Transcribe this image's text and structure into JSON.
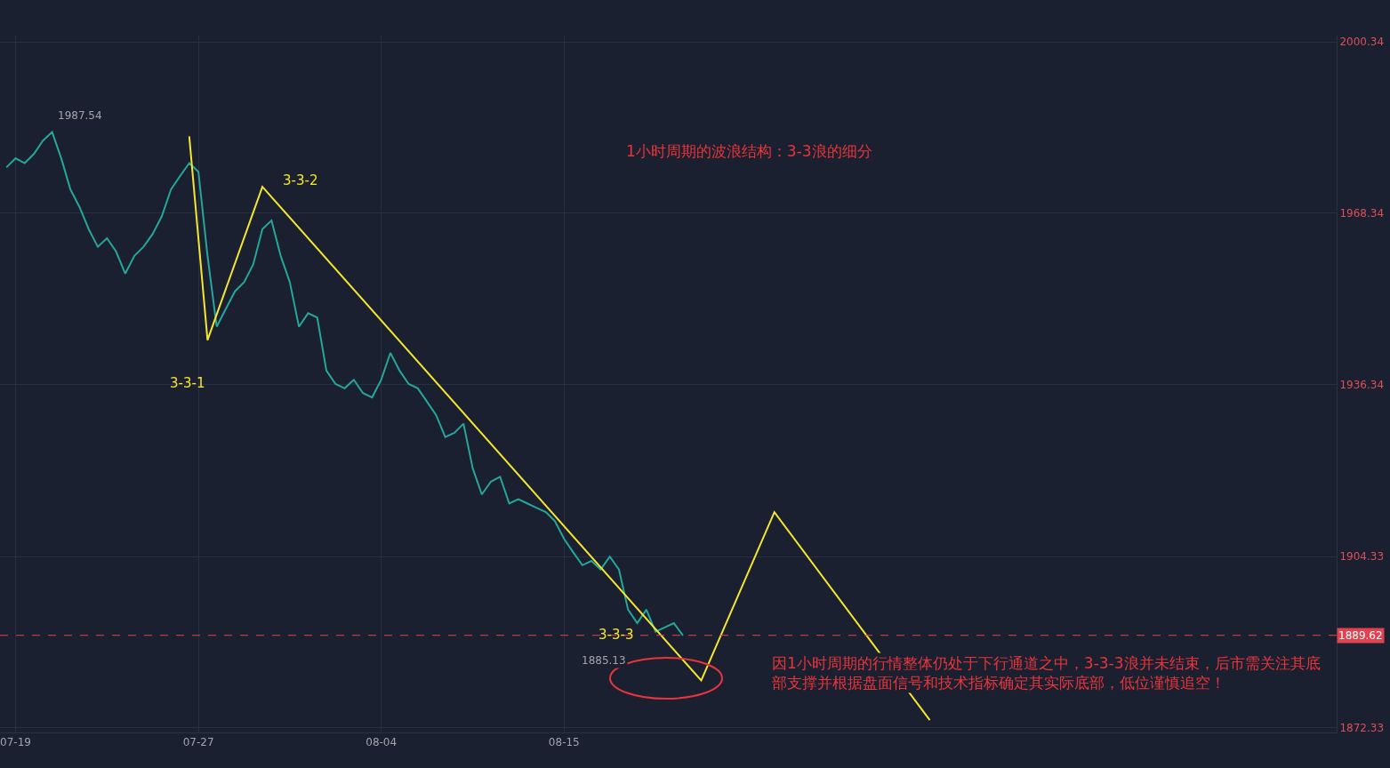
{
  "chart_data": {
    "type": "line",
    "categories": [
      null,
      "07-19",
      null,
      null,
      null,
      null,
      null,
      null,
      null,
      null,
      null,
      null,
      null,
      null,
      null,
      null,
      null,
      null,
      null,
      null,
      null,
      "07-27",
      null,
      null,
      null,
      null,
      null,
      null,
      null,
      null,
      null,
      null,
      null,
      null,
      null,
      null,
      null,
      null,
      null,
      null,
      null,
      "08-04",
      null,
      null,
      null,
      null,
      null,
      null,
      null,
      null,
      null,
      null,
      null,
      null,
      null,
      null,
      null,
      null,
      null,
      null,
      null,
      "08-15",
      null,
      null,
      null,
      null,
      null,
      null,
      null,
      null,
      null,
      null,
      null,
      null,
      null,
      null,
      null,
      null,
      null,
      null,
      null,
      null,
      null,
      null,
      null,
      null,
      null,
      null,
      null,
      null,
      null,
      null,
      null,
      null,
      null,
      null,
      null,
      null,
      null,
      null,
      null,
      null,
      null,
      null,
      null,
      null,
      null,
      null,
      null,
      null,
      null,
      null,
      null,
      null,
      null,
      null,
      null,
      null,
      null,
      null,
      null,
      null,
      null,
      null,
      null,
      null,
      null,
      null,
      null,
      null,
      null,
      null,
      null,
      null,
      null,
      null,
      null,
      null,
      null,
      null,
      null,
      null,
      null,
      null,
      null,
      null
    ],
    "series": [
      {
        "color": "#26a69a",
        "values": [
          1976.9,
          1978.6,
          1977.7,
          1979.4,
          1981.9,
          1983.5,
          1978.6,
          1972.8,
          1969.5,
          1965.4,
          1962.1,
          1963.7,
          1961.2,
          1957.1,
          1960.4,
          1962.1,
          1964.5,
          1967.8,
          1972.8,
          1975.3,
          1977.7,
          1976.1,
          1960.4,
          1947.2,
          1950.5,
          1953.8,
          1955.5,
          1958.8,
          1965.4,
          1967.0,
          1960.4,
          1955.5,
          1947.2,
          1949.7,
          1948.9,
          1939.0,
          1936.5,
          1935.7,
          1937.3,
          1934.8,
          1934.0,
          1937.3,
          1942.3,
          1939.0,
          1936.5,
          1935.7,
          1933.2,
          1930.7,
          1926.6,
          1927.4,
          1929.1,
          1920.8,
          1915.9,
          1918.3,
          1919.2,
          1914.2,
          1915.0,
          1914.2,
          1913.4,
          1912.6,
          1910.9,
          1907.6,
          1905.1,
          1902.7,
          1903.5,
          1901.9,
          1904.3,
          1901.9,
          1894.4,
          1891.9,
          1894.4,
          1890.3,
          1891.1,
          1891.9,
          1889.6,
          null,
          null,
          null,
          null,
          null,
          null,
          null,
          null,
          null,
          null,
          null,
          null,
          null,
          null,
          null,
          null,
          null,
          null,
          null,
          null,
          null,
          null,
          null,
          null,
          null,
          null,
          null,
          null,
          null,
          null,
          null,
          null,
          null,
          null,
          null,
          null,
          null,
          null,
          null,
          null,
          null,
          null,
          null,
          null,
          null,
          null,
          null,
          null,
          null,
          null,
          null,
          null,
          null,
          null,
          null,
          null,
          null,
          null,
          null,
          null,
          null,
          null,
          null,
          null,
          null,
          null,
          null,
          null,
          null,
          null,
          null
        ]
      },
      {
        "color": "#f5e72d",
        "values": [
          null,
          null,
          null,
          null,
          null,
          null,
          null,
          null,
          null,
          null,
          null,
          null,
          null,
          null,
          null,
          null,
          null,
          null,
          null,
          null,
          1982.7,
          null,
          1944.7,
          null,
          null,
          null,
          null,
          null,
          1973.3,
          null,
          null,
          null,
          null,
          null,
          null,
          null,
          null,
          null,
          null,
          null,
          null,
          null,
          null,
          null,
          null,
          null,
          null,
          null,
          null,
          null,
          null,
          null,
          null,
          null,
          null,
          null,
          null,
          null,
          null,
          null,
          null,
          null,
          null,
          null,
          null,
          null,
          null,
          null,
          null,
          null,
          null,
          null,
          null,
          null,
          null,
          null,
          1881.2,
          null,
          null,
          null,
          null,
          null,
          null,
          null,
          1912.6,
          null,
          null,
          null,
          null,
          null,
          null,
          null,
          null,
          null,
          null,
          null,
          null,
          null,
          null,
          null,
          null,
          1873.8,
          null,
          null,
          null,
          null,
          null,
          null,
          null,
          null,
          null,
          null,
          null,
          null,
          null,
          null,
          null,
          null,
          null,
          null,
          null,
          null,
          null,
          null,
          null,
          null,
          null,
          null,
          null,
          null,
          null,
          null,
          null,
          null,
          null,
          null,
          null,
          null,
          null,
          null,
          null,
          null,
          null,
          null,
          null,
          null
        ]
      }
    ],
    "ylim": [
      1871.5,
      2001.5
    ],
    "yticks": [
      2000.34,
      1968.34,
      1936.34,
      1904.33,
      1872.33
    ],
    "ref_lines": [
      {
        "axis": "y",
        "value": 1889.62,
        "label": "1889.62",
        "color": "#e0434f",
        "line_style": "dashed"
      }
    ],
    "annotations": [
      "1小时周期的波浪结构：3-3浪的细分",
      "3-3-1",
      "3-3-2",
      "3-3-3",
      "因1小时周期的行情整体仍处于下行通道之中，3-3-3浪并未结束，后市需关注其底部支撑并根据盘面信号和技术指标确定其实际底部，低位谨慎追空！",
      "1987.54",
      "1885.13"
    ],
    "grid": true,
    "marker": "none",
    "line_style": "solid"
  }
}
